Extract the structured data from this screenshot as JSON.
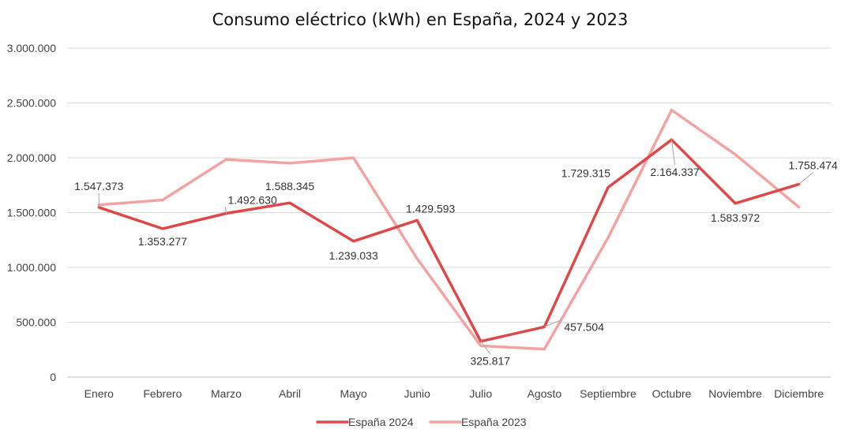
{
  "chart_data": {
    "type": "line",
    "title": "Consumo eléctrico (kWh) en España, 2024 y 2023",
    "xlabel": "",
    "ylabel": "",
    "ylim": [
      0,
      3000000
    ],
    "yticks": [
      0,
      500000,
      1000000,
      1500000,
      2000000,
      2500000,
      3000000
    ],
    "ytick_labels": [
      "0",
      "500.000",
      "1.000.000",
      "1.500.000",
      "2.000.000",
      "2.500.000",
      "3.000.000"
    ],
    "categories": [
      "Enero",
      "Febrero",
      "Marzo",
      "Abril",
      "Mayo",
      "Junio",
      "Julio",
      "Agosto",
      "Septiembre",
      "Octubre",
      "Noviembre",
      "Diciembre"
    ],
    "grid": "horizontal",
    "legend_position": "bottom",
    "series": [
      {
        "name": "España 2024",
        "color": "#E04848",
        "values": [
          1547373,
          1353277,
          1492630,
          1588345,
          1239033,
          1429593,
          325817,
          457504,
          1729315,
          2164337,
          1583972,
          1758474
        ],
        "labels": [
          "1.547.373",
          "1.353.277",
          "1.492.630",
          "1.588.345",
          "1.239.033",
          "1.429.593",
          "325.817",
          "457.504",
          "1.729.315",
          "2.164.337",
          "1.583.972",
          "1.758.474"
        ]
      },
      {
        "name": "España 2023",
        "color": "#F4A3A3",
        "values": [
          1570000,
          1615000,
          1985000,
          1950000,
          2000000,
          1080000,
          285000,
          255000,
          1270000,
          2435000,
          2030000,
          1550000
        ]
      }
    ]
  }
}
